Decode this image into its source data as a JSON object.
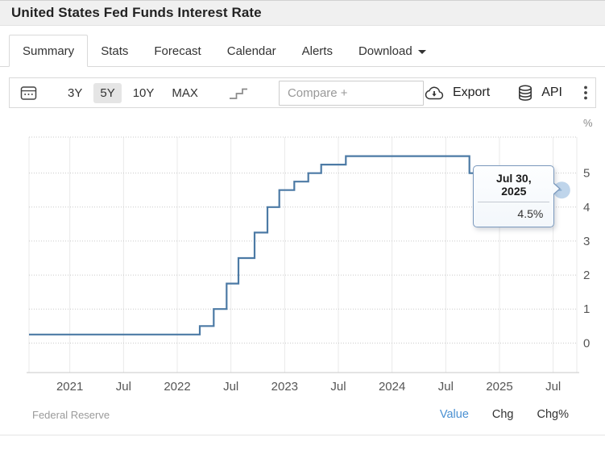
{
  "header": {
    "title": "United States Fed Funds Interest Rate"
  },
  "tabs": {
    "items": [
      {
        "label": "Summary",
        "active": true
      },
      {
        "label": "Stats"
      },
      {
        "label": "Forecast"
      },
      {
        "label": "Calendar"
      },
      {
        "label": "Alerts"
      },
      {
        "label": "Download",
        "has_caret": true
      }
    ]
  },
  "toolbar": {
    "ranges": [
      {
        "label": "3Y",
        "active": false
      },
      {
        "label": "5Y",
        "active": true
      },
      {
        "label": "10Y",
        "active": false
      },
      {
        "label": "MAX",
        "active": false
      }
    ],
    "compare_placeholder": "Compare +",
    "export_label": "Export",
    "api_label": "API",
    "icons": [
      "calendar-icon",
      "step-line-chart-icon",
      "cloud-download-icon",
      "database-icon",
      "kebab-menu-icon",
      "caret-down-icon"
    ]
  },
  "tooltip": {
    "date": "Jul 30, 2025",
    "value": "4.5%"
  },
  "chart_data": {
    "type": "line",
    "step": true,
    "title": "United States Fed Funds Interest Rate",
    "ylabel": "%",
    "unit_label": "%",
    "grid": true,
    "xlim": [
      2020.62,
      2025.72
    ],
    "ylim": [
      -0.87,
      6.06
    ],
    "yticks": [
      0,
      1,
      2,
      3,
      4,
      5
    ],
    "xticks": [
      {
        "t": 2021.0,
        "label": "2021"
      },
      {
        "t": 2021.5,
        "label": "Jul"
      },
      {
        "t": 2022.0,
        "label": "2022"
      },
      {
        "t": 2022.5,
        "label": "Jul"
      },
      {
        "t": 2023.0,
        "label": "2023"
      },
      {
        "t": 2023.5,
        "label": "Jul"
      },
      {
        "t": 2024.0,
        "label": "2024"
      },
      {
        "t": 2024.5,
        "label": "Jul"
      },
      {
        "t": 2025.0,
        "label": "2025"
      },
      {
        "t": 2025.5,
        "label": "Jul"
      }
    ],
    "series": [
      {
        "name": "Fed Funds Interest Rate",
        "points": [
          [
            2020.62,
            0.25
          ],
          [
            2022.21,
            0.5
          ],
          [
            2022.34,
            1.0
          ],
          [
            2022.46,
            1.75
          ],
          [
            2022.57,
            2.5
          ],
          [
            2022.72,
            3.25
          ],
          [
            2022.84,
            4.0
          ],
          [
            2022.95,
            4.5
          ],
          [
            2023.09,
            4.75
          ],
          [
            2023.22,
            5.0
          ],
          [
            2023.34,
            5.25
          ],
          [
            2023.57,
            5.5
          ],
          [
            2024.72,
            5.0
          ],
          [
            2024.85,
            4.75
          ],
          [
            2024.96,
            4.5
          ],
          [
            2025.58,
            4.5
          ]
        ]
      }
    ],
    "last_point": {
      "t": 2025.58,
      "value": 4.5,
      "date": "Jul 30, 2025",
      "display": "4.5%"
    }
  },
  "footer": {
    "source": "Federal Reserve",
    "links": [
      {
        "label": "Value",
        "active": true
      },
      {
        "label": "Chg",
        "active": false
      },
      {
        "label": "Chg%",
        "active": false
      }
    ]
  },
  "colors": {
    "line": "#4c7aa5",
    "marker": "#a9c7e4",
    "tooltip_border": "#7b99bd",
    "link_blue": "#4a90d2",
    "grid_vertical": "#e9e9e9",
    "grid_horizontal": "#c9c9c9",
    "axis_text": "#555",
    "range_active_bg": "#e5e5e5"
  }
}
